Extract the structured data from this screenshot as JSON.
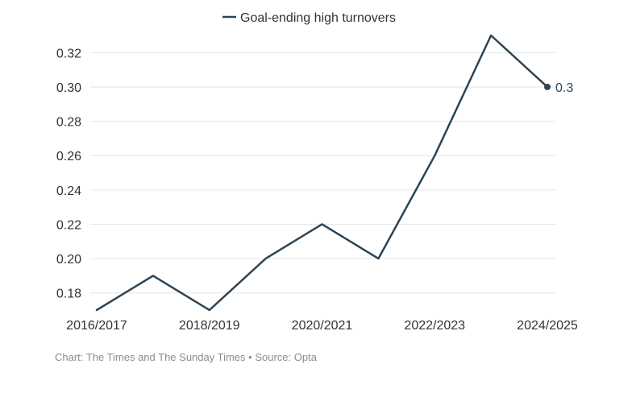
{
  "chart_data": {
    "type": "line",
    "x": [
      "2016/2017",
      "2017/2018",
      "2018/2019",
      "2019/2020",
      "2020/2021",
      "2021/2022",
      "2022/2023",
      "2023/2024",
      "2024/2025"
    ],
    "series": [
      {
        "name": "Goal-ending high turnovers",
        "values": [
          0.17,
          0.19,
          0.17,
          0.2,
          0.22,
          0.2,
          0.26,
          0.33,
          0.3
        ]
      }
    ],
    "x_tick_labels": [
      "2016/2017",
      "2018/2019",
      "2020/2021",
      "2022/2023",
      "2024/2025"
    ],
    "y_ticks": [
      "0.18",
      "0.20",
      "0.22",
      "0.24",
      "0.26",
      "0.28",
      "0.30",
      "0.32"
    ],
    "ylim": [
      0.17,
      0.33
    ],
    "end_label": "0.3",
    "legend_position": "top",
    "grid": true,
    "colors": {
      "line": "#2d4454",
      "grid": "#e6e6e6",
      "text": "#333333"
    }
  },
  "footer": {
    "credit": "Chart: The Times and The Sunday Times",
    "separator": "•",
    "source": "Source: Opta"
  }
}
